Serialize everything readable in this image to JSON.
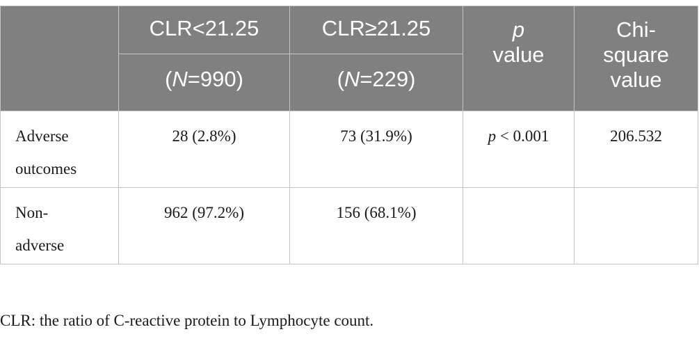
{
  "table": {
    "columns": {
      "col1": {
        "label": "CLR<21.25",
        "n_prefix": "(",
        "n_var": "N",
        "n_value": "=990)"
      },
      "col2": {
        "label": "CLR≥21.25",
        "n_prefix": "(",
        "n_var": "N",
        "n_value": "=229)"
      },
      "p": {
        "italic": "p",
        "line2": "value"
      },
      "chi": {
        "line1": "Chi-",
        "line2": "square",
        "line3": "value"
      }
    },
    "rows": [
      {
        "label_line1": "Adverse",
        "label_line2": "outcomes",
        "col1": "28 (2.8%)",
        "col2": "73 (31.9%)",
        "p_italic": "p",
        "p_rest": " < 0.001",
        "chi": "206.532"
      },
      {
        "label_line1": "Non-",
        "label_line2": "adverse",
        "col1": "962 (97.2%)",
        "col2": "156 (68.1%)",
        "p_italic": "",
        "p_rest": "",
        "chi": ""
      }
    ]
  },
  "footnote": "CLR: the ratio of C-reactive protein to Lymphocyte count."
}
